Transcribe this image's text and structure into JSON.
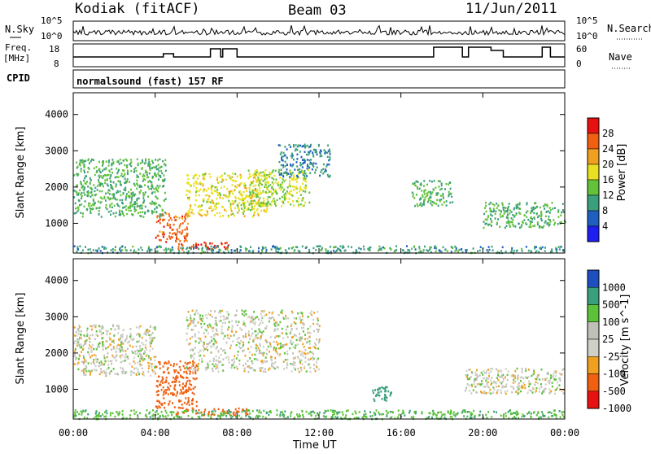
{
  "header": {
    "station": "Kodiak (fitACF)",
    "beam": "Beam 03",
    "date": "11/Jun/2011"
  },
  "noise_panel": {
    "left_label": "N.Sky",
    "right_label": "N.Search",
    "left_ticks": [
      "10^5",
      "10^0"
    ],
    "right_ticks": [
      "10^5",
      "10^0"
    ]
  },
  "freq_panel": {
    "left_label_1": "Freq.",
    "left_label_2": "[MHz]",
    "right_label": "Nave",
    "left_ticks": [
      "18",
      "8"
    ],
    "right_ticks": [
      "60",
      "0"
    ]
  },
  "cpid_panel": {
    "label": "CPID",
    "program": "normalsound (fast) 157 RF"
  },
  "colors": {
    "power": [
      "#1e1ef0",
      "#1f5fbf",
      "#3c9f7c",
      "#63c23a",
      "#e8e020",
      "#f0a020",
      "#f06010",
      "#e81010"
    ],
    "velocity": [
      "#e81010",
      "#f06010",
      "#f0a020",
      "#d0d0c8",
      "#c0c0b8",
      "#5cc23a",
      "#3c9f7c",
      "#1e4fbf"
    ]
  },
  "chart_data": [
    {
      "type": "heatmap",
      "name": "Power",
      "ylabel": "Slant Range [km]",
      "colorbar_label": "Power [dB]",
      "colorbar_ticks": [
        "28",
        "24",
        "20",
        "16",
        "12",
        "8",
        "4"
      ],
      "ylim": [
        180,
        4600
      ],
      "yticks": [
        "4000",
        "3000",
        "2000",
        "1000"
      ],
      "xticks": [
        "00:00",
        "04:00",
        "08:00",
        "12:00",
        "16:00",
        "20:00",
        "00:00"
      ],
      "xlim_hours": [
        0,
        24
      ],
      "features": [
        {
          "t": [
            5.1,
            7.7
          ],
          "range": [
            300,
            500
          ],
          "value": 28
        },
        {
          "t": [
            4.0,
            5.6
          ],
          "range": [
            500,
            1300
          ],
          "value": 26
        },
        {
          "t": [
            5.5,
            9.5
          ],
          "range": [
            1200,
            2400
          ],
          "value": 18
        },
        {
          "t": [
            0,
            4.5
          ],
          "range": [
            1200,
            2800
          ],
          "value": 12
        },
        {
          "t": [
            8.5,
            11.5
          ],
          "range": [
            1500,
            2500
          ],
          "value": 16
        },
        {
          "t": [
            10.0,
            12.5
          ],
          "range": [
            2300,
            3200
          ],
          "value": 8
        },
        {
          "t": [
            0,
            24
          ],
          "range": [
            200,
            400
          ],
          "value": 10
        },
        {
          "t": [
            20.0,
            24.0
          ],
          "range": [
            900,
            1600
          ],
          "value": 12
        },
        {
          "t": [
            16.5,
            18.5
          ],
          "range": [
            1500,
            2200
          ],
          "value": 12
        }
      ]
    },
    {
      "type": "heatmap",
      "name": "Velocity",
      "ylabel": "Slant Range [km]",
      "colorbar_label": "Velocity [m s^-1]",
      "colorbar_ticks": [
        "1000",
        "500",
        "100",
        "25",
        "-25",
        "-100",
        "-500",
        "-1000"
      ],
      "ylim": [
        180,
        4600
      ],
      "yticks": [
        "4000",
        "3000",
        "2000",
        "1000"
      ],
      "xticks": [
        "00:00",
        "04:00",
        "08:00",
        "12:00",
        "16:00",
        "20:00",
        "00:00"
      ],
      "xlabel": "Time UT",
      "xlim_hours": [
        0,
        24
      ],
      "features": [
        {
          "t": [
            4.0,
            6.0
          ],
          "range": [
            500,
            1800
          ],
          "value": -400
        },
        {
          "t": [
            5.0,
            8.5
          ],
          "range": [
            300,
            500
          ],
          "value": -150
        },
        {
          "t": [
            5.5,
            12.0
          ],
          "range": [
            1500,
            3200
          ],
          "value": 0
        },
        {
          "t": [
            0,
            4.0
          ],
          "range": [
            1400,
            2800
          ],
          "value": 0
        },
        {
          "t": [
            0,
            24
          ],
          "range": [
            200,
            450
          ],
          "value": 80
        },
        {
          "t": [
            14.5,
            15.5
          ],
          "range": [
            700,
            1100
          ],
          "value": 150
        },
        {
          "t": [
            19.0,
            24.0
          ],
          "range": [
            900,
            1600
          ],
          "value": 0
        }
      ]
    }
  ]
}
